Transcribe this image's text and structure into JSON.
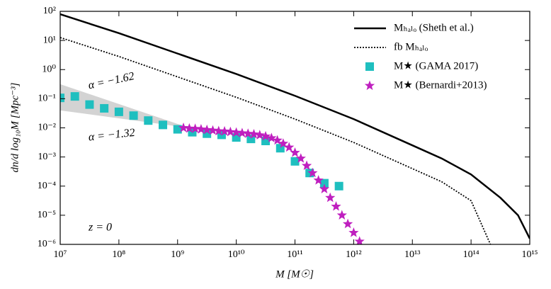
{
  "chart_data": {
    "type": "scatter",
    "log_x": true,
    "log_y": true,
    "xlabel": "M [M☉]",
    "ylabel": "dn/d log₁₀M [Mpc⁻³]",
    "xlim": [
      10000000.0,
      1000000000000000.0
    ],
    "ylim": [
      1e-06,
      100
    ],
    "xticks": [
      {
        "value": 10000000.0,
        "label": "10⁷"
      },
      {
        "value": 100000000.0,
        "label": "10⁸"
      },
      {
        "value": 1000000000.0,
        "label": "10⁹"
      },
      {
        "value": 10000000000.0,
        "label": "10¹⁰"
      },
      {
        "value": 100000000000.0,
        "label": "10¹¹"
      },
      {
        "value": 1000000000000.0,
        "label": "10¹²"
      },
      {
        "value": 10000000000000.0,
        "label": "10¹³"
      },
      {
        "value": 100000000000000.0,
        "label": "10¹⁴"
      },
      {
        "value": 1000000000000000.0,
        "label": "10¹⁵"
      }
    ],
    "yticks": [
      {
        "value": 1e-06,
        "label": "10⁻⁶"
      },
      {
        "value": 1e-05,
        "label": "10⁻⁵"
      },
      {
        "value": 0.0001,
        "label": "10⁻⁴"
      },
      {
        "value": 0.001,
        "label": "10⁻³"
      },
      {
        "value": 0.01,
        "label": "10⁻²"
      },
      {
        "value": 0.1,
        "label": "10⁻¹"
      },
      {
        "value": 1,
        "label": "10⁰"
      },
      {
        "value": 10,
        "label": "10¹"
      },
      {
        "value": 100,
        "label": "10²"
      }
    ],
    "legend": "upper right",
    "annotations": [
      {
        "text": "α = −1.62"
      },
      {
        "text": "α = −1.32"
      },
      {
        "text": "z = 0"
      }
    ],
    "band": {
      "color": "#d3d3d3",
      "x": [
        10000000.0,
        1585000000.0
      ],
      "upper": [
        0.316,
        0.01
      ],
      "lower": [
        0.0398,
        0.01
      ]
    },
    "series": [
      {
        "name": "Mₕₐₗₒ (Sheth et al.)",
        "kind": "line",
        "style": "solid",
        "color": "#000000",
        "x": [
          10000000.0,
          100000000.0,
          1000000000.0,
          10000000000.0,
          100000000000.0,
          1000000000000.0,
          10000000000000.0,
          31620000000000.0,
          100000000000000.0,
          316200000000000.0,
          631000000000000.0,
          1000000000000000.0
        ],
        "values": [
          79.4,
          17.8,
          3.55,
          0.708,
          0.126,
          0.02,
          0.00251,
          0.000891,
          0.000251,
          3.98e-05,
          1e-05,
          1.58e-06
        ]
      },
      {
        "name": "fb Mₕₐₗₒ",
        "kind": "line",
        "style": "dotted",
        "color": "#000000",
        "x": [
          10000000.0,
          100000000.0,
          1000000000.0,
          10000000000.0,
          100000000000.0,
          1000000000000.0,
          10000000000000.0,
          31620000000000.0,
          100000000000000.0,
          213800000000000.0
        ],
        "values": [
          12.6,
          2.82,
          0.562,
          0.112,
          0.02,
          0.00316,
          0.000398,
          0.000141,
          3.16e-05,
          1e-06
        ]
      },
      {
        "name": "M★ (GAMA 2017)",
        "kind": "square",
        "color": "#1fbfbf",
        "x": [
          10000000.0,
          17780000.0,
          31620000.0,
          56230000.0,
          100000000.0,
          177800000.0,
          316200000.0,
          562300000.0,
          1000000000.0,
          1778000000.0,
          3162000000.0,
          5623000000.0,
          10000000000.0,
          17780000000.0,
          31620000000.0,
          56230000000.0,
          100000000000.0,
          177800000000.0,
          316200000000.0,
          562300000000.0
        ],
        "values": [
          0.107,
          0.12,
          0.0631,
          0.0468,
          0.0355,
          0.0263,
          0.0178,
          0.0126,
          0.00891,
          0.00708,
          0.00631,
          0.00575,
          0.00468,
          0.00417,
          0.00355,
          0.002,
          0.000708,
          0.000282,
          0.000126,
          0.0001
        ]
      },
      {
        "name": "M★ (Bernardi+2013)",
        "kind": "star",
        "color": "#bf1fbf",
        "x": [
          1259000000.0,
          1585000000.0,
          1995000000.0,
          2512000000.0,
          3162000000.0,
          3981000000.0,
          5012000000.0,
          6310000000.0,
          7943000000.0,
          10000000000.0,
          12590000000.0,
          15850000000.0,
          19950000000.0,
          25120000000.0,
          31620000000.0,
          39810000000.0,
          50120000000.0,
          63100000000.0,
          79430000000.0,
          100000000000.0,
          125900000000.0,
          158500000000.0,
          199500000000.0,
          251200000000.0,
          316200000000.0,
          398100000000.0,
          501200000000.0,
          631000000000.0,
          794300000000.0,
          1000000000000.0,
          1259000000000.0
        ],
        "values": [
          0.01,
          0.00955,
          0.00933,
          0.00891,
          0.00851,
          0.00813,
          0.00776,
          0.00759,
          0.00724,
          0.00692,
          0.00661,
          0.00631,
          0.00603,
          0.00562,
          0.00513,
          0.00447,
          0.00372,
          0.00288,
          0.00214,
          0.00141,
          0.000891,
          0.000501,
          0.000282,
          0.000158,
          7.94e-05,
          3.98e-05,
          2e-05,
          1e-05,
          5.01e-06,
          2.51e-06,
          1.26e-06
        ]
      }
    ]
  }
}
